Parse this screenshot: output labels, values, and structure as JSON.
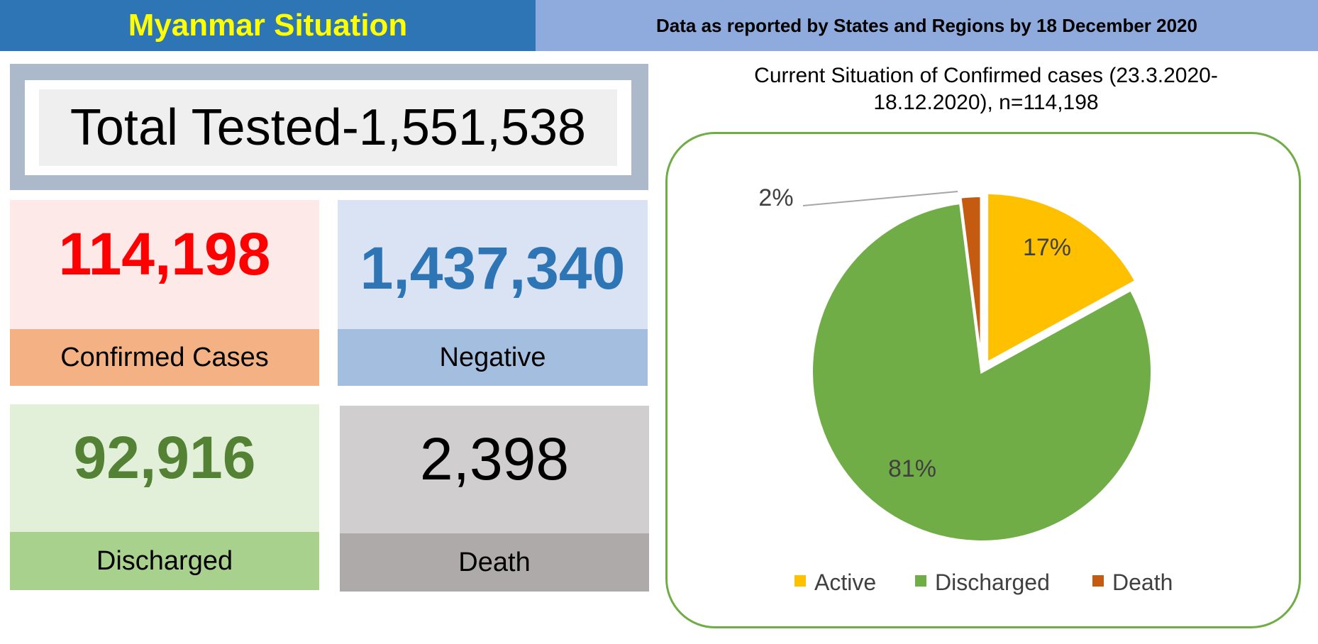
{
  "header": {
    "title": "Myanmar Situation",
    "subtitle": "Data as reported by States and Regions by 18 December 2020"
  },
  "total_tested": "Total Tested-1,551,538",
  "cards": {
    "confirmed": {
      "value": "114,198",
      "label": "Confirmed Cases"
    },
    "negative": {
      "value": "1,437,340",
      "label": "Negative"
    },
    "discharged": {
      "value": "92,916",
      "label": "Discharged"
    },
    "death": {
      "value": "2,398",
      "label": "Death"
    }
  },
  "colors": {
    "active": "#ffc000",
    "discharged": "#70ad47",
    "death": "#c55a11"
  },
  "chart_data": {
    "type": "pie",
    "title": "Current Situation of Confirmed cases (23.3.2020-18.12.2020), n=114,198",
    "title_lines": [
      "Current Situation of Confirmed cases (23.3.2020-",
      "18.12.2020), n=114,198"
    ],
    "categories": [
      "Active",
      "Discharged",
      "Death"
    ],
    "values": [
      17,
      81,
      2
    ],
    "data_labels": [
      "17%",
      "81%",
      "2%"
    ],
    "legend_position": "bottom"
  }
}
